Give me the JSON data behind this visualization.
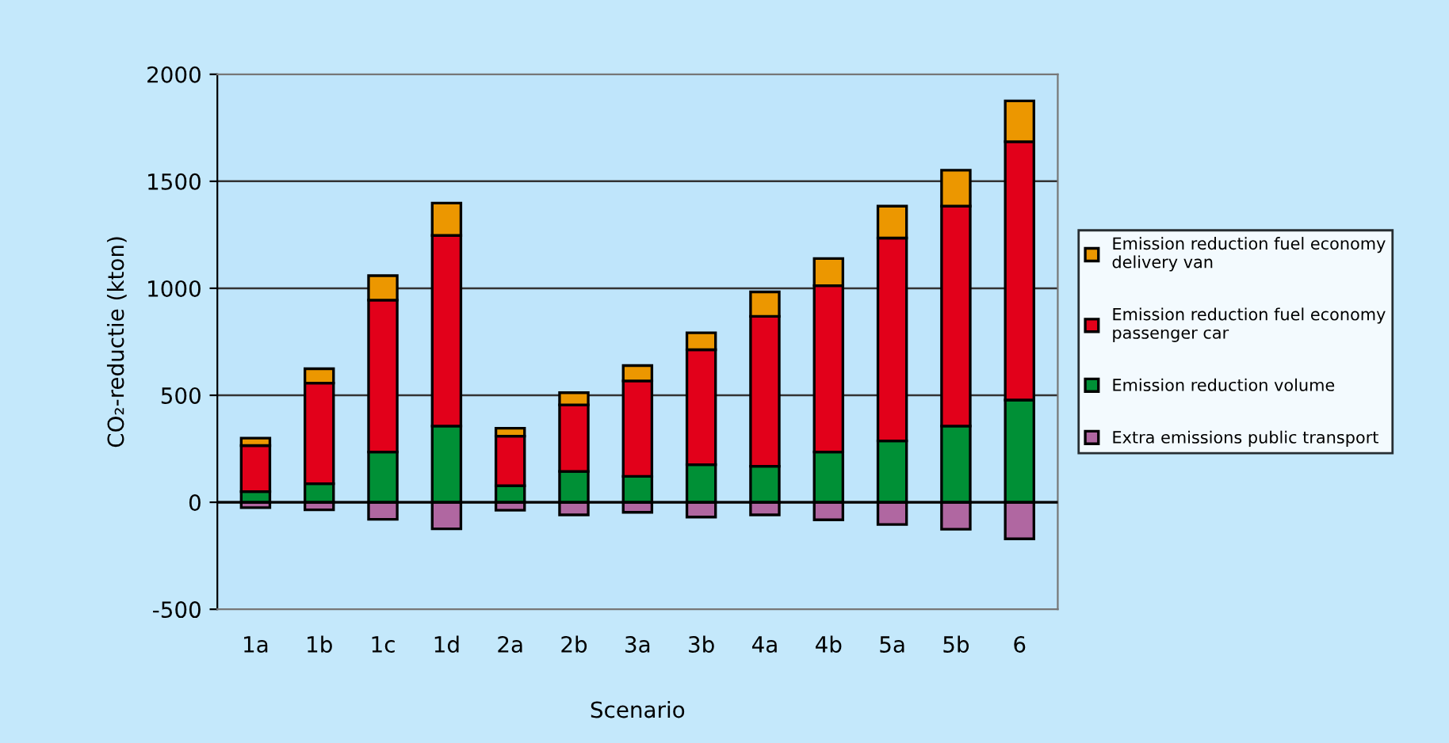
{
  "chart_data": {
    "type": "bar",
    "stacked": true,
    "xlabel": "Scenario",
    "ylabel": "CO₂-reductie (kton)",
    "categories": [
      "1a",
      "1b",
      "1c",
      "1d",
      "2a",
      "2b",
      "3a",
      "3b",
      "4a",
      "4b",
      "5a",
      "5b",
      "6"
    ],
    "series": [
      {
        "name": "Extra emissions public transport",
        "color": "#b067a1",
        "values": [
          -25,
          -35,
          -80,
          -124,
          -37,
          -59,
          -47,
          -69,
          -59,
          -82,
          -104,
          -126,
          -171
        ]
      },
      {
        "name": "Emission reduction volume",
        "color": "#009036",
        "values": [
          50,
          87,
          235,
          356,
          77,
          144,
          121,
          176,
          168,
          235,
          287,
          356,
          478
        ]
      },
      {
        "name": "Emission reduction fuel economy\npassenger car",
        "color": "#e2001a",
        "values": [
          215,
          470,
          710,
          891,
          232,
          311,
          446,
          537,
          701,
          777,
          948,
          1028,
          1207
        ]
      },
      {
        "name": "Emission reduction fuel economy\ndelivery van",
        "color": "#ec9700",
        "values": [
          35,
          67,
          114,
          151,
          37,
          57,
          72,
          79,
          114,
          127,
          149,
          168,
          191
        ]
      }
    ],
    "ylim": [
      -500,
      2000
    ],
    "yticks": [
      -500,
      0,
      500,
      1000,
      1500,
      2000
    ],
    "grid": "y",
    "legend": "right"
  }
}
